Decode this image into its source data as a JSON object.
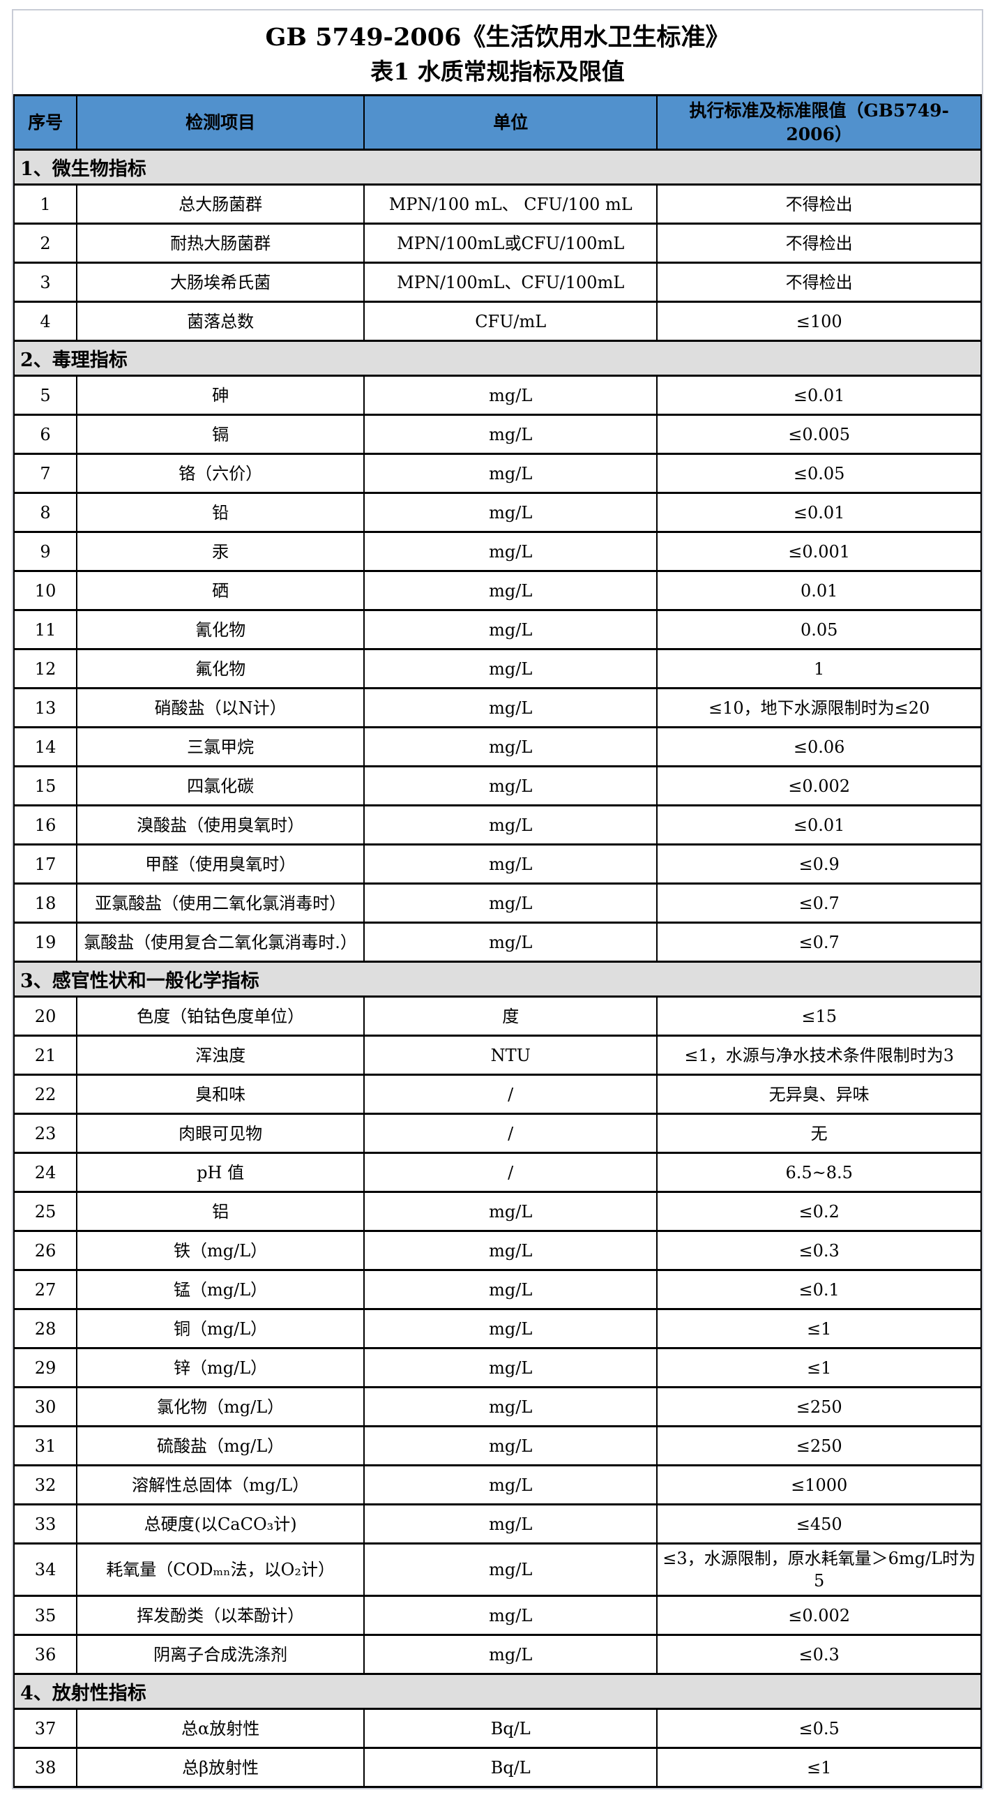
{
  "document": {
    "title_line1": "GB 5749-2006《生活饮用水卫生标准》",
    "title_line2": "表1 水质常规指标及限值"
  },
  "colors": {
    "header_bg": "#5191CD",
    "section_bg": "#DEDEDE",
    "border": "#000000",
    "frame_border": "#C8CCD6",
    "page_bg": "#FFFFFF"
  },
  "table": {
    "columns": [
      "序号",
      "检测项目",
      "单位",
      "执行标准及标准限值（GB5749-2006）"
    ],
    "sections": [
      {
        "label": "1、微生物指标",
        "rows": [
          [
            "1",
            "总大肠菌群",
            "MPN/100 mL、 CFU/100 mL",
            "不得检出"
          ],
          [
            "2",
            "耐热大肠菌群",
            "MPN/100mL或CFU/100mL",
            "不得检出"
          ],
          [
            "3",
            "大肠埃希氏菌",
            "MPN/100mL、CFU/100mL",
            "不得检出"
          ],
          [
            "4",
            "菌落总数",
            "CFU/mL",
            "≤100"
          ]
        ]
      },
      {
        "label": "2、毒理指标",
        "rows": [
          [
            "5",
            "砷",
            "mg/L",
            "≤0.01"
          ],
          [
            "6",
            "镉",
            "mg/L",
            "≤0.005"
          ],
          [
            "7",
            "铬（六价）",
            "mg/L",
            "≤0.05"
          ],
          [
            "8",
            "铅",
            "mg/L",
            "≤0.01"
          ],
          [
            "9",
            "汞",
            "mg/L",
            "≤0.001"
          ],
          [
            "10",
            "硒",
            "mg/L",
            "0.01"
          ],
          [
            "11",
            "氰化物",
            "mg/L",
            "0.05"
          ],
          [
            "12",
            "氟化物",
            "mg/L",
            "1"
          ],
          [
            "13",
            "硝酸盐（以N计）",
            "mg/L",
            "≤10，地下水源限制时为≤20"
          ],
          [
            "14",
            "三氯甲烷",
            "mg/L",
            "≤0.06"
          ],
          [
            "15",
            "四氯化碳",
            "mg/L",
            "≤0.002"
          ],
          [
            "16",
            "溴酸盐（使用臭氧时）",
            "mg/L",
            "≤0.01"
          ],
          [
            "17",
            "甲醛（使用臭氧时）",
            "mg/L",
            "≤0.9"
          ],
          [
            "18",
            "亚氯酸盐（使用二氧化氯消毒时）",
            "mg/L",
            "≤0.7"
          ],
          [
            "19",
            "氯酸盐（使用复合二氧化氯消毒时.）",
            "mg/L",
            "≤0.7"
          ]
        ]
      },
      {
        "label": "3、感官性状和一般化学指标",
        "rows": [
          [
            "20",
            "色度（铂钴色度单位）",
            "度",
            "≤15"
          ],
          [
            "21",
            "浑浊度",
            "NTU",
            "≤1，水源与净水技术条件限制时为3"
          ],
          [
            "22",
            "臭和味",
            "/",
            "无异臭、异味"
          ],
          [
            "23",
            "肉眼可见物",
            "/",
            "无"
          ],
          [
            "24",
            "pH 值",
            "/",
            "6.5~8.5"
          ],
          [
            "25",
            "铝",
            "mg/L",
            "≤0.2"
          ],
          [
            "26",
            "铁（mg/L）",
            "mg/L",
            "≤0.3"
          ],
          [
            "27",
            "锰（mg/L）",
            "mg/L",
            "≤0.1"
          ],
          [
            "28",
            "铜（mg/L）",
            "mg/L",
            "≤1"
          ],
          [
            "29",
            "锌（mg/L）",
            "mg/L",
            "≤1"
          ],
          [
            "30",
            "氯化物（mg/L）",
            "mg/L",
            "≤250"
          ],
          [
            "31",
            "硫酸盐（mg/L）",
            "mg/L",
            "≤250"
          ],
          [
            "32",
            "溶解性总固体（mg/L）",
            "mg/L",
            "≤1000"
          ],
          [
            "33",
            "总硬度(以CaCO₃计)",
            "mg/L",
            "≤450"
          ],
          [
            "34",
            "耗氧量（CODₘₙ法，以O₂计）",
            "mg/L",
            "≤3，水源限制，原水耗氧量＞6mg/L时为5"
          ],
          [
            "35",
            "挥发酚类（以苯酚计）",
            "mg/L",
            "≤0.002"
          ],
          [
            "36",
            "阴离子合成洗涤剂",
            "mg/L",
            "≤0.3"
          ]
        ]
      },
      {
        "label": "4、放射性指标",
        "rows": [
          [
            "37",
            "总α放射性",
            "Bq/L",
            "≤0.5"
          ],
          [
            "38",
            "总β放射性",
            "Bq/L",
            "≤1"
          ]
        ]
      }
    ]
  }
}
